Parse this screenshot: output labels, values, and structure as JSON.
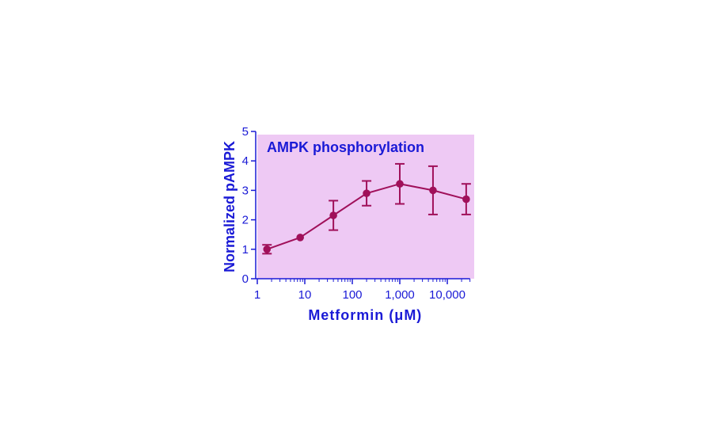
{
  "chart_data": {
    "type": "line",
    "title": "AMPK phosphorylation",
    "xlabel": "Metformin (μM)",
    "ylabel": "Normalized pAMPK",
    "xscale": "log",
    "xlim": [
      1,
      30000
    ],
    "ylim": [
      0,
      5
    ],
    "x_ticks": [
      1,
      10,
      100,
      1000,
      10000
    ],
    "x_tick_labels": [
      "1",
      "10",
      "100",
      "1,000",
      "10,000"
    ],
    "y_ticks": [
      0,
      1,
      2,
      3,
      4,
      5
    ],
    "y_tick_labels": [
      "0",
      "1",
      "2",
      "3",
      "4",
      "5"
    ],
    "series": [
      {
        "name": "pAMPK",
        "x": [
          1.6,
          8,
          40,
          200,
          1000,
          5000,
          25000
        ],
        "values": [
          1.0,
          1.4,
          2.15,
          2.9,
          3.22,
          3.0,
          2.7
        ],
        "error": [
          0.15,
          0.0,
          0.5,
          0.42,
          0.68,
          0.82,
          0.52
        ]
      }
    ],
    "colors": {
      "plot_background": "#eec9f4",
      "series": "#a0105a",
      "axis": "#1a1ad6"
    }
  }
}
